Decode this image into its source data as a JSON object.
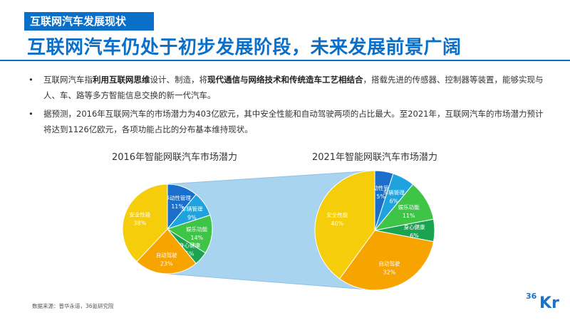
{
  "header": {
    "tag": "互联网汽车发展现状",
    "title": "互联网汽车仍处于初步发展阶段，未来发展前景广阔",
    "accent": "#0a6fc9"
  },
  "bullets": [
    {
      "parts": [
        {
          "text": "互联网汽车指",
          "bold": false
        },
        {
          "text": "利用互联网思维",
          "bold": true
        },
        {
          "text": "设计、制造，将",
          "bold": false
        },
        {
          "text": "现代通信与网络技术和传统造车工艺相结合",
          "bold": true
        },
        {
          "text": "，搭载先进的传感器、控制器等装置，能够实现与人、车、路等多方智能信息交换的新一代汽车。",
          "bold": false
        }
      ]
    },
    {
      "parts": [
        {
          "text": "据预测，2016年互联网汽车的市场潜力为403亿欧元，其中安全性能和自动驾驶两项的占比最大。至2021年，互联网汽车的市场潜力预计将达到1126亿欧元，各项功能占比的分布基本维持现状。",
          "bold": false
        }
      ]
    }
  ],
  "bullet_symbol": "•",
  "chart_data": [
    {
      "type": "pie",
      "title": "2016年智能网联汽车市场潜力",
      "slices": [
        {
          "label": "移动性管理",
          "value": 11,
          "display": "11%",
          "color": "#1a6fcc"
        },
        {
          "label": "车辆管理",
          "value": 9,
          "display": "9%",
          "color": "#1fa3df"
        },
        {
          "label": "娱乐功能",
          "value": 14,
          "display": "14%",
          "color": "#3ec548"
        },
        {
          "label": "身心健康",
          "value": 5,
          "display": "5%",
          "color": "#1aa350"
        },
        {
          "label": "自动驾驶",
          "value": 23,
          "display": "23%",
          "color": "#f7a400"
        },
        {
          "label": "安全性能",
          "value": 38,
          "display": "38%",
          "color": "#f5cd0b"
        }
      ]
    },
    {
      "type": "pie",
      "title": "2021年智能网联汽车市场潜力",
      "slices": [
        {
          "label": "移动性管理",
          "value": 5,
          "display": "5%",
          "color": "#1a6fcc"
        },
        {
          "label": "车辆管理",
          "value": 6,
          "display": "6%",
          "color": "#1fa3df"
        },
        {
          "label": "娱乐功能",
          "value": 11,
          "display": "11%",
          "color": "#3ec548"
        },
        {
          "label": "身心健康",
          "value": 6,
          "display": "6%",
          "color": "#1aa350"
        },
        {
          "label": "自动驾驶",
          "value": 32,
          "display": "32%",
          "color": "#f7a400"
        },
        {
          "label": "安全性能",
          "value": 40,
          "display": "40%",
          "color": "#f5cd0b"
        }
      ]
    }
  ],
  "connector_color": "#a9d4ef",
  "footer": {
    "source": "数据来源：普华永道，36氪研究院",
    "logo_number": "36",
    "logo_letters": "Kr"
  }
}
